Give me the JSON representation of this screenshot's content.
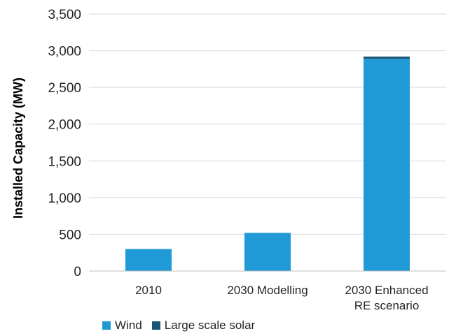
{
  "chart_data": {
    "type": "bar",
    "stacked": true,
    "categories": [
      "2010",
      "2030 Modelling",
      "2030 Enhanced\nRE scenario"
    ],
    "series": [
      {
        "name": "Wind",
        "color": "#1f9ad6",
        "values": [
          300,
          520,
          2890
        ]
      },
      {
        "name": "Large scale solar",
        "color": "#1b5577",
        "values": [
          0,
          0,
          30
        ]
      }
    ],
    "ylabel": "Installed Capacity (MW)",
    "ylim": [
      0,
      3500
    ],
    "yticks": [
      "0",
      "500",
      "1,000",
      "1,500",
      "2,000",
      "2,500",
      "3,000",
      "3,500"
    ],
    "grid": true,
    "legend": "bottom"
  }
}
